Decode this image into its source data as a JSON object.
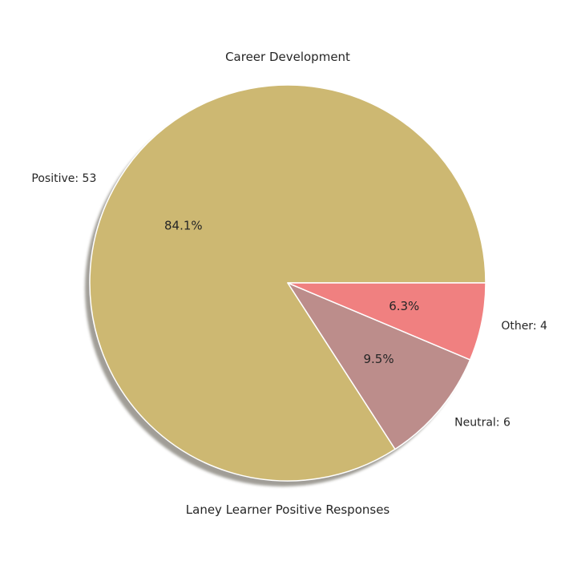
{
  "chart_data": {
    "type": "pie",
    "title": "Career Development",
    "xlabel": "Laney Learner Positive Responses",
    "ylabel": "",
    "slices": [
      {
        "label": "Positive: 53",
        "value": 53,
        "pct_label": "84.1%",
        "color": "#CDB872"
      },
      {
        "label": "Neutral: 6",
        "value": 6,
        "pct_label": "9.5%",
        "color": "#BC8D8B"
      },
      {
        "label": "Other: 4",
        "value": 4,
        "pct_label": "6.3%",
        "color": "#F08080"
      }
    ],
    "start_angle_deg": 0,
    "direction": "counterclockwise",
    "shadow": true,
    "wedge_edge_color": "#ffffff"
  }
}
